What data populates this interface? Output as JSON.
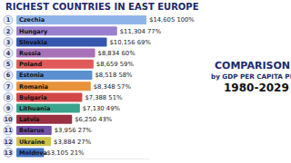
{
  "chart_data": {
    "type": "bar",
    "orientation": "horizontal",
    "title": "RICHEST COUNTRIES IN EAST EUROPE",
    "annotations": [
      "COMPARISON BY",
      "by GDP PER CAPITA PPP",
      "1980-2029"
    ],
    "categories": [
      "Czechia",
      "Hungary",
      "Slovakia",
      "Russia",
      "Poland",
      "Estonia",
      "Romania",
      "Bulgaria",
      "Lithuania",
      "Latvia",
      "Belarus",
      "Ukraine",
      "Moldova"
    ],
    "ranks": [
      1,
      2,
      3,
      4,
      5,
      6,
      7,
      8,
      9,
      10,
      11,
      12,
      13
    ],
    "values": [
      14605,
      11304,
      10156,
      8834,
      8659,
      8518,
      8348,
      7388,
      7130,
      6250,
      3956,
      3884,
      3105
    ],
    "value_labels": [
      "$14,605 100%",
      "$11,304 77%",
      "$10,156 69%",
      "$8,834 60%",
      "$8,659 59%",
      "$8,518 58%",
      "$8,348 57%",
      "$7,388 51%",
      "$7,130 49%",
      "$6,250 43%",
      "$3,956 27%",
      "$3,884 27%",
      "$3,105 21%"
    ],
    "colors": [
      "#8fb4e8",
      "#9a7fcf",
      "#3657b0",
      "#a872b8",
      "#e05a5a",
      "#5a8fd0",
      "#e8923a",
      "#d24848",
      "#3aa58c",
      "#9a3040",
      "#7452a8",
      "#cfc24a",
      "#3f72c4"
    ],
    "xlim": [
      0,
      15000
    ],
    "data_labels": true,
    "tick_labels": false,
    "grid": false
  }
}
